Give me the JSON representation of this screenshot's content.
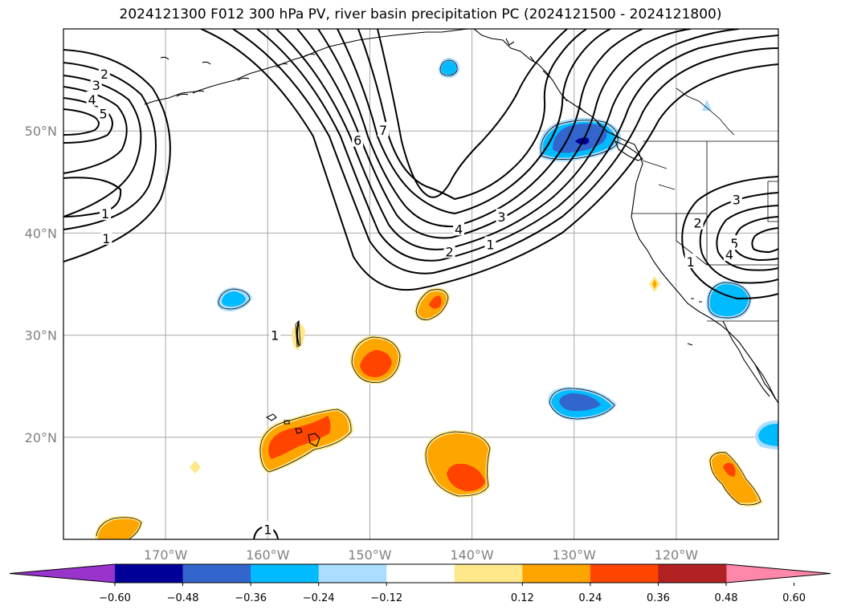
{
  "title": "2024121300 F012 300 hPa PV, river basin precipitation PC (2024121500 - 2024121800)",
  "map": {
    "lon_range": [
      -180,
      -110
    ],
    "lat_range": [
      10,
      60
    ],
    "lat_ticks": [
      {
        "lat": 20,
        "label": "20°N"
      },
      {
        "lat": 30,
        "label": "30°N"
      },
      {
        "lat": 40,
        "label": "40°N"
      },
      {
        "lat": 50,
        "label": "50°N"
      }
    ],
    "lon_ticks": [
      {
        "lon": -170,
        "label": "170°W"
      },
      {
        "lon": -160,
        "label": "160°W"
      },
      {
        "lon": -150,
        "label": "150°W"
      },
      {
        "lon": -140,
        "label": "140°W"
      },
      {
        "lon": -130,
        "label": "130°W"
      },
      {
        "lon": -120,
        "label": "120°W"
      }
    ],
    "pv_contour_labels": [
      {
        "text": "2",
        "lon": -176.0,
        "lat": 55.6
      },
      {
        "text": "3",
        "lon": -176.8,
        "lat": 54.5
      },
      {
        "text": "4",
        "lon": -177.2,
        "lat": 53.1
      },
      {
        "text": "5",
        "lon": -176.1,
        "lat": 51.7
      },
      {
        "text": "1",
        "lon": -175.9,
        "lat": 41.9
      },
      {
        "text": "1",
        "lon": -175.8,
        "lat": 39.5
      },
      {
        "text": "6",
        "lon": -151.2,
        "lat": 49.1
      },
      {
        "text": "7",
        "lon": -148.7,
        "lat": 50.1
      },
      {
        "text": "4",
        "lon": -141.3,
        "lat": 40.4
      },
      {
        "text": "3",
        "lon": -137.1,
        "lat": 41.6
      },
      {
        "text": "2",
        "lon": -142.2,
        "lat": 38.2
      },
      {
        "text": "1",
        "lon": -138.2,
        "lat": 38.9
      },
      {
        "text": "3",
        "lon": -114.1,
        "lat": 43.3
      },
      {
        "text": "2",
        "lon": -117.9,
        "lat": 41.0
      },
      {
        "text": "5",
        "lon": -114.3,
        "lat": 39.0
      },
      {
        "text": "4",
        "lon": -114.8,
        "lat": 37.9
      },
      {
        "text": "1",
        "lon": -118.6,
        "lat": 37.2
      },
      {
        "text": "1",
        "lon": -159.3,
        "lat": 30.0
      },
      {
        "text": "1",
        "lon": -160.0,
        "lat": 11.0
      }
    ]
  },
  "colorbar": {
    "colors": [
      "#9933cc",
      "#000099",
      "#3366cc",
      "#00bbff",
      "#aaddff",
      "#ffffff",
      "#ffe88a",
      "#ffa500",
      "#ff4400",
      "#b22222",
      "#ff88aa"
    ],
    "tick_labels": [
      "−0.60",
      "−0.48",
      "−0.36",
      "−0.24",
      "−0.12",
      "0.12",
      "0.24",
      "0.36",
      "0.48",
      "0.60"
    ]
  }
}
